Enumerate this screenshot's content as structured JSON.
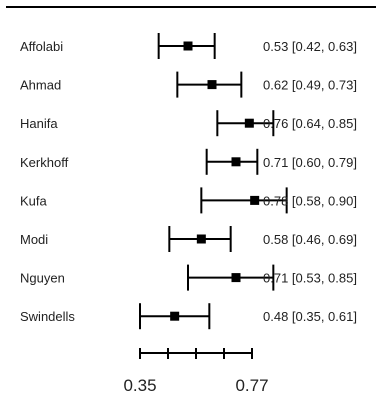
{
  "chart_data": {
    "type": "forest",
    "title": "",
    "xlabel": "",
    "ylabel": "",
    "xlim": [
      0.35,
      0.77
    ],
    "x_ticks": [
      0.35,
      0.77
    ],
    "x_tick_labels": [
      "0.35",
      "0.77"
    ],
    "grid": false,
    "legend": "none",
    "studies": [
      {
        "name": "Affolabi",
        "estimate": 0.53,
        "lower": 0.42,
        "upper": 0.63,
        "label": "0.53 [0.42, 0.63]"
      },
      {
        "name": "Ahmad",
        "estimate": 0.62,
        "lower": 0.49,
        "upper": 0.73,
        "label": "0.62 [0.49, 0.73]"
      },
      {
        "name": "Hanifa",
        "estimate": 0.76,
        "lower": 0.64,
        "upper": 0.85,
        "label": "0.76 [0.64, 0.85]"
      },
      {
        "name": "Kerkhoff",
        "estimate": 0.71,
        "lower": 0.6,
        "upper": 0.79,
        "label": "0.71 [0.60, 0.79]"
      },
      {
        "name": "Kufa",
        "estimate": 0.78,
        "lower": 0.58,
        "upper": 0.9,
        "label": "0.78 [0.58, 0.90]"
      },
      {
        "name": "Modi",
        "estimate": 0.58,
        "lower": 0.46,
        "upper": 0.69,
        "label": "0.58 [0.46, 0.69]"
      },
      {
        "name": "Nguyen",
        "estimate": 0.71,
        "lower": 0.53,
        "upper": 0.85,
        "label": "0.71 [0.53, 0.85]"
      },
      {
        "name": "Swindells",
        "estimate": 0.48,
        "lower": 0.35,
        "upper": 0.61,
        "label": "0.48 [0.35, 0.61]"
      }
    ]
  }
}
